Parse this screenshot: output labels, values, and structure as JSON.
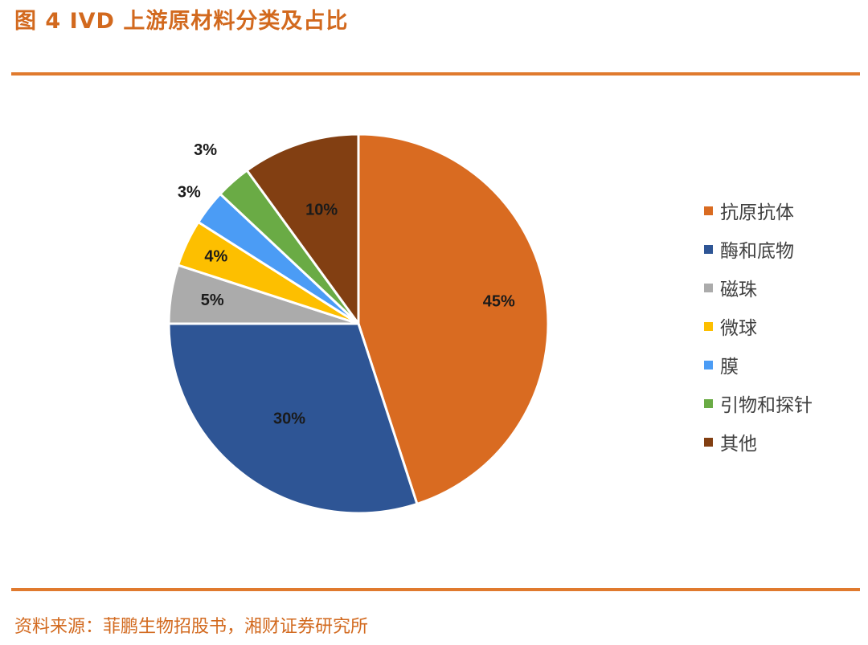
{
  "title": "图  4 IVD 上游原材料分类及占比",
  "source": "资料来源：菲鹏生物招股书，湘财证券研究所",
  "chart_data": {
    "type": "pie",
    "title": "",
    "legend_position": "right",
    "slices": [
      {
        "label": "抗原抗体",
        "value": 45,
        "value_label": "45%",
        "color": "#d96b21"
      },
      {
        "label": "酶和底物",
        "value": 30,
        "value_label": "30%",
        "color": "#2e5595"
      },
      {
        "label": "磁珠",
        "value": 5,
        "value_label": "5%",
        "color": "#ababab"
      },
      {
        "label": "微球",
        "value": 4,
        "value_label": "4%",
        "color": "#fdbf00"
      },
      {
        "label": "膜",
        "value": 3,
        "value_label": "3%",
        "color": "#4b9cf5"
      },
      {
        "label": "引物和探针",
        "value": 3,
        "value_label": "3%",
        "color": "#6aab45"
      },
      {
        "label": "其他",
        "value": 10,
        "value_label": "10%",
        "color": "#823f12"
      }
    ]
  }
}
